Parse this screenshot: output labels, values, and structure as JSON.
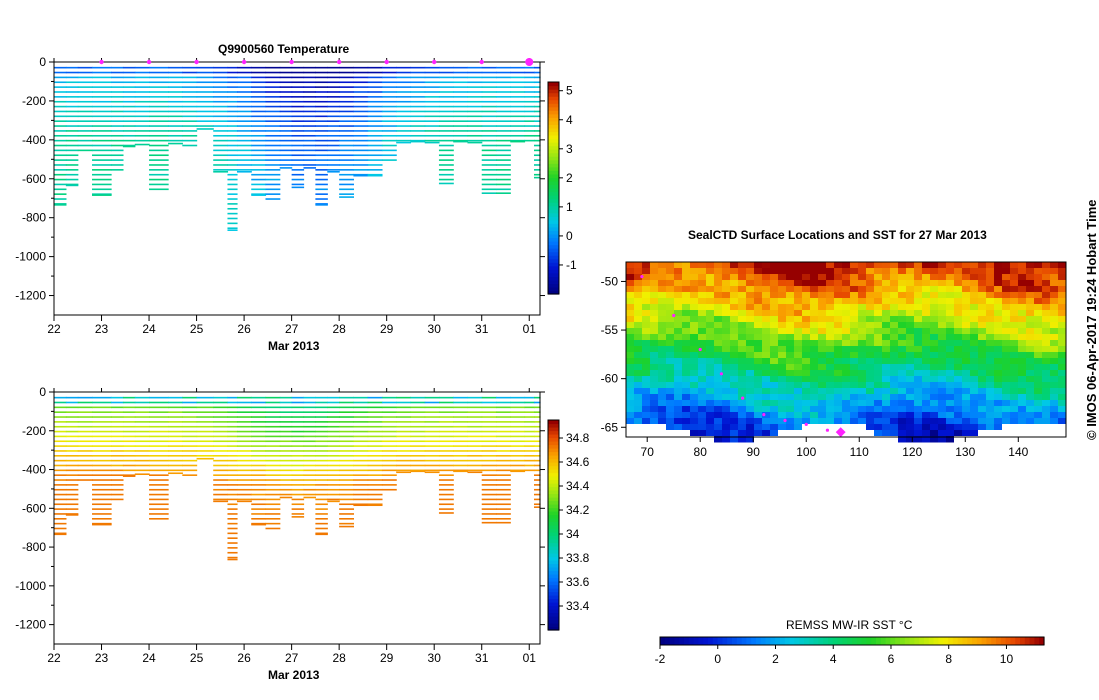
{
  "temperature_title": "Q9900560  Temperature",
  "time_axis_label": "Mar 2013",
  "map_title": "SealCTD Surface Locations and SST for 27 Mar 2013",
  "credit": "©  IMOS 06-Apr-2017 19:24 Hobart Time",
  "sst_colorbar_label": "REMSS MW-IR SST °C",
  "colors": {
    "profile_marker": "#ff22ff",
    "land_mask": "#ffffff",
    "background": "#ffffff"
  },
  "chart_data": [
    {
      "type": "heatmap",
      "name": "temperature-section",
      "title": "Q9900560  Temperature",
      "xlabel": "Mar 2013",
      "ylabel": "",
      "x_ticks": [
        "22",
        "23",
        "24",
        "25",
        "26",
        "27",
        "28",
        "29",
        "30",
        "31",
        "01"
      ],
      "y_ticks": [
        "0",
        "-200",
        "-400",
        "-600",
        "-800",
        "-1000",
        "-1200"
      ],
      "ylim": [
        -1300,
        0
      ],
      "x_day_range": [
        22,
        32.1
      ],
      "colorbar": {
        "range": [
          -2,
          5.3
        ],
        "ticks": [
          "-1",
          "0",
          "1",
          "2",
          "3",
          "4",
          "5"
        ]
      },
      "profile_markers_day": [
        23,
        24,
        25,
        26,
        27,
        28,
        29,
        30,
        31,
        32
      ],
      "profiles": [
        {
          "day": 22.0,
          "depth": 730
        },
        {
          "day": 22.25,
          "depth": 630
        },
        {
          "day": 22.5,
          "depth": 450
        },
        {
          "day": 22.8,
          "depth": 680
        },
        {
          "day": 23.2,
          "depth": 550
        },
        {
          "day": 23.45,
          "depth": 430
        },
        {
          "day": 23.7,
          "depth": 420
        },
        {
          "day": 24.0,
          "depth": 650
        },
        {
          "day": 24.4,
          "depth": 415
        },
        {
          "day": 24.7,
          "depth": 425
        },
        {
          "day": 25.0,
          "depth": 340
        },
        {
          "day": 25.35,
          "depth": 560
        },
        {
          "day": 25.65,
          "depth": 860
        },
        {
          "day": 25.85,
          "depth": 560
        },
        {
          "day": 26.15,
          "depth": 680
        },
        {
          "day": 26.45,
          "depth": 700
        },
        {
          "day": 26.75,
          "depth": 540
        },
        {
          "day": 27.0,
          "depth": 640
        },
        {
          "day": 27.25,
          "depth": 540
        },
        {
          "day": 27.5,
          "depth": 730
        },
        {
          "day": 27.75,
          "depth": 560
        },
        {
          "day": 28.0,
          "depth": 690
        },
        {
          "day": 28.3,
          "depth": 580
        },
        {
          "day": 28.6,
          "depth": 580
        },
        {
          "day": 28.9,
          "depth": 500
        },
        {
          "day": 29.2,
          "depth": 410
        },
        {
          "day": 29.5,
          "depth": 405
        },
        {
          "day": 29.8,
          "depth": 410
        },
        {
          "day": 30.1,
          "depth": 620
        },
        {
          "day": 30.4,
          "depth": 405
        },
        {
          "day": 30.7,
          "depth": 410
        },
        {
          "day": 31.0,
          "depth": 670
        },
        {
          "day": 31.3,
          "depth": 670
        },
        {
          "day": 31.6,
          "depth": 405
        },
        {
          "day": 31.9,
          "depth": 400
        },
        {
          "day": 32.1,
          "depth": 590
        }
      ]
    },
    {
      "type": "heatmap",
      "name": "salinity-section",
      "title": "",
      "xlabel": "Mar 2013",
      "x_ticks": [
        "22",
        "23",
        "24",
        "25",
        "26",
        "27",
        "28",
        "29",
        "30",
        "31",
        "01"
      ],
      "y_ticks": [
        "0",
        "-200",
        "-400",
        "-600",
        "-800",
        "-1000",
        "-1200"
      ],
      "ylim": [
        -1300,
        0
      ],
      "colorbar": {
        "range": [
          33.2,
          34.95
        ],
        "ticks": [
          "33.4",
          "33.6",
          "33.8",
          "34",
          "34.2",
          "34.4",
          "34.6",
          "34.8"
        ]
      }
    },
    {
      "type": "heatmap",
      "name": "sst-map",
      "title": "SealCTD Surface Locations and SST for 27 Mar 2013",
      "x_ticks": [
        "70",
        "80",
        "90",
        "100",
        "110",
        "120",
        "130",
        "140"
      ],
      "y_ticks": [
        "-50",
        "-55",
        "-60",
        "-65"
      ],
      "xlim": [
        66,
        149
      ],
      "ylim": [
        -66,
        -48
      ],
      "colorbar": {
        "label": "REMSS MW-IR SST °C",
        "range": [
          -2,
          11.3
        ],
        "ticks": [
          "-2",
          "0",
          "2",
          "4",
          "6",
          "8",
          "10"
        ]
      },
      "track": [
        {
          "lon": 69,
          "lat": -49.5
        },
        {
          "lon": 75,
          "lat": -53.5
        },
        {
          "lon": 80,
          "lat": -57
        },
        {
          "lon": 84,
          "lat": -59.5
        },
        {
          "lon": 88,
          "lat": -62
        },
        {
          "lon": 92,
          "lat": -63.7
        },
        {
          "lon": 96,
          "lat": -64.3
        },
        {
          "lon": 100,
          "lat": -64.7
        },
        {
          "lon": 104,
          "lat": -65.3
        },
        {
          "lon": 106.5,
          "lat": -65.5
        }
      ],
      "last_position": {
        "lon": 106.5,
        "lat": -65.5
      }
    }
  ]
}
